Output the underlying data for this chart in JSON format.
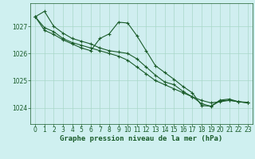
{
  "background_color": "#cff0f0",
  "plot_bg_color": "#d0eef0",
  "grid_color": "#a8d8c8",
  "line_color": "#1a5c2a",
  "marker_color": "#1a5c2a",
  "xlabel": "Graphe pression niveau de la mer (hPa)",
  "xlabel_color": "#1a5c2a",
  "xlim": [
    -0.5,
    23.5
  ],
  "ylim": [
    1023.4,
    1027.85
  ],
  "yticks": [
    1024,
    1025,
    1026,
    1027
  ],
  "xticks": [
    0,
    1,
    2,
    3,
    4,
    5,
    6,
    7,
    8,
    9,
    10,
    11,
    12,
    13,
    14,
    15,
    16,
    17,
    18,
    19,
    20,
    21,
    22,
    23
  ],
  "series1": [
    1027.35,
    1027.55,
    1027.0,
    1026.75,
    1026.55,
    1026.45,
    1026.35,
    1026.2,
    1026.1,
    1026.05,
    1026.0,
    1025.8,
    1025.5,
    1025.2,
    1024.95,
    1024.85,
    1024.6,
    1024.4,
    1024.15,
    1024.05,
    1024.25,
    1024.28,
    1024.22,
    1024.2
  ],
  "series2": [
    1027.35,
    1026.85,
    1026.7,
    1026.5,
    1026.35,
    1026.2,
    1026.1,
    1026.55,
    1026.72,
    1027.15,
    1027.12,
    1026.65,
    1026.1,
    1025.55,
    1025.3,
    1025.05,
    1024.78,
    1024.55,
    1024.08,
    1024.06,
    1024.28,
    1024.32,
    1024.22,
    1024.18
  ],
  "series3": [
    1027.35,
    1026.95,
    1026.8,
    1026.55,
    1026.4,
    1026.3,
    1026.2,
    1026.1,
    1026.0,
    1025.9,
    1025.75,
    1025.5,
    1025.25,
    1025.0,
    1024.85,
    1024.7,
    1024.55,
    1024.4,
    1024.27,
    1024.18,
    1024.22,
    1024.27,
    1024.22,
    1024.18
  ],
  "marker_size": 3.0,
  "linewidth": 0.8,
  "tick_fontsize": 5.5,
  "xlabel_fontsize": 6.5
}
